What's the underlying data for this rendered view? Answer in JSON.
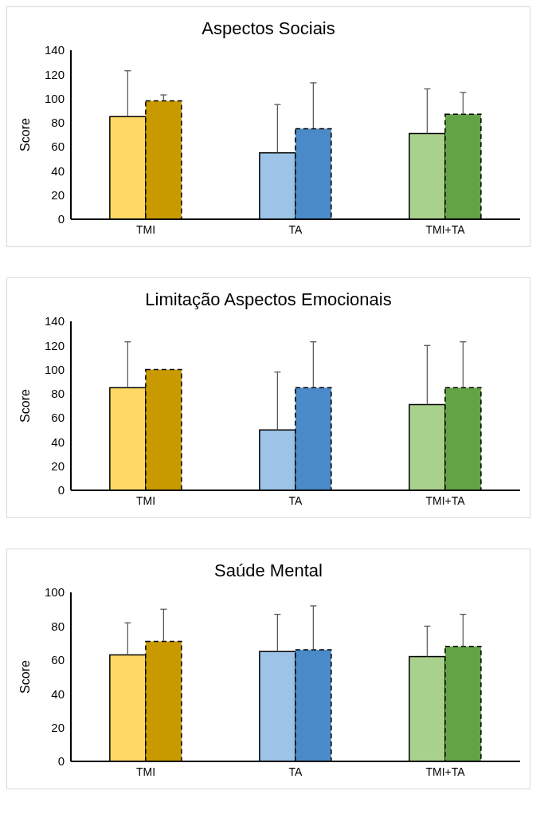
{
  "chart_data": [
    {
      "type": "bar",
      "title": "Aspectos Sociais",
      "ylabel": "Score",
      "categories": [
        "TMI",
        "TA",
        "TMI+TA"
      ],
      "ylim": [
        0,
        140
      ],
      "yticks": [
        0,
        20,
        40,
        60,
        80,
        100,
        120,
        140
      ],
      "grid": false,
      "legend": false,
      "series": [
        {
          "colors": [
            "#ffd966",
            "#9dc3e6",
            "#a9d18e"
          ],
          "line_style": "solid",
          "values": [
            85,
            55,
            71
          ],
          "errors": [
            [
              85,
              123
            ],
            [
              55,
              95
            ],
            [
              71,
              108
            ]
          ]
        },
        {
          "colors": [
            "#c99a00",
            "#4a8ac8",
            "#63a346"
          ],
          "line_style": "dashed",
          "values": [
            98,
            75,
            87
          ],
          "errors": [
            [
              98,
              103
            ],
            [
              75,
              113
            ],
            [
              87,
              105
            ]
          ]
        }
      ]
    },
    {
      "type": "bar",
      "title": "Limitação Aspectos Emocionais",
      "ylabel": "Score",
      "categories": [
        "TMI",
        "TA",
        "TMI+TA"
      ],
      "ylim": [
        0,
        140
      ],
      "yticks": [
        0,
        20,
        40,
        60,
        80,
        100,
        120,
        140
      ],
      "grid": false,
      "legend": false,
      "series": [
        {
          "colors": [
            "#ffd966",
            "#9dc3e6",
            "#a9d18e"
          ],
          "line_style": "solid",
          "values": [
            85,
            50,
            71
          ],
          "errors": [
            [
              85,
              123
            ],
            [
              50,
              98
            ],
            [
              71,
              120
            ]
          ]
        },
        {
          "colors": [
            "#c99a00",
            "#4a8ac8",
            "#63a346"
          ],
          "line_style": "dashed",
          "values": [
            100,
            85,
            85
          ],
          "errors": [
            null,
            [
              85,
              123
            ],
            [
              85,
              123
            ]
          ]
        }
      ]
    },
    {
      "type": "bar",
      "title": "Saúde Mental",
      "ylabel": "Score",
      "categories": [
        "TMI",
        "TA",
        "TMI+TA"
      ],
      "ylim": [
        0,
        100
      ],
      "yticks": [
        0,
        20,
        40,
        60,
        80,
        100
      ],
      "grid": false,
      "legend": false,
      "series": [
        {
          "colors": [
            "#ffd966",
            "#9dc3e6",
            "#a9d18e"
          ],
          "line_style": "solid",
          "values": [
            63,
            65,
            62
          ],
          "errors": [
            [
              63,
              82
            ],
            [
              65,
              87
            ],
            [
              62,
              80
            ]
          ]
        },
        {
          "colors": [
            "#c99a00",
            "#4a8ac8",
            "#63a346"
          ],
          "line_style": "dashed",
          "values": [
            71,
            66,
            68
          ],
          "errors": [
            [
              71,
              90
            ],
            [
              66,
              92
            ],
            [
              68,
              87
            ]
          ]
        }
      ]
    }
  ]
}
